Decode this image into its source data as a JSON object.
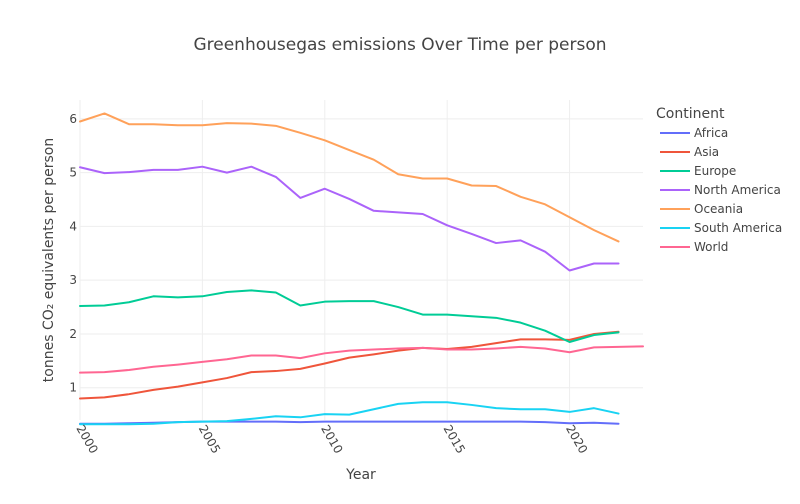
{
  "chart_data": {
    "type": "line",
    "title": "Greenhousegas emissions Over Time per person",
    "xlabel": "Year",
    "ylabel": "tonnes CO₂ equivalents per person",
    "xlim": [
      2000,
      2023
    ],
    "ylim": [
      0.4,
      6.35
    ],
    "x_ticks": [
      2000,
      2005,
      2010,
      2015,
      2020
    ],
    "y_ticks": [
      1,
      2,
      3,
      4,
      5,
      6
    ],
    "grid": true,
    "legend_title": "Continent",
    "legend_position": "right",
    "series": [
      {
        "name": "Africa",
        "color": "#636efa",
        "points": [
          [
            2000,
            0.33
          ],
          [
            2001,
            0.33
          ],
          [
            2002,
            0.34
          ],
          [
            2003,
            0.35
          ],
          [
            2004,
            0.36
          ],
          [
            2005,
            0.37
          ],
          [
            2006,
            0.37
          ],
          [
            2007,
            0.37
          ],
          [
            2008,
            0.37
          ],
          [
            2009,
            0.36
          ],
          [
            2010,
            0.37
          ],
          [
            2011,
            0.37
          ],
          [
            2012,
            0.37
          ],
          [
            2013,
            0.37
          ],
          [
            2014,
            0.37
          ],
          [
            2015,
            0.37
          ],
          [
            2016,
            0.37
          ],
          [
            2017,
            0.37
          ],
          [
            2018,
            0.37
          ],
          [
            2019,
            0.36
          ],
          [
            2020,
            0.34
          ],
          [
            2021,
            0.35
          ],
          [
            2022,
            0.33
          ]
        ]
      },
      {
        "name": "Asia",
        "color": "#ef553b",
        "points": [
          [
            2000,
            0.8
          ],
          [
            2001,
            0.82
          ],
          [
            2002,
            0.88
          ],
          [
            2003,
            0.96
          ],
          [
            2004,
            1.02
          ],
          [
            2005,
            1.1
          ],
          [
            2006,
            1.18
          ],
          [
            2007,
            1.29
          ],
          [
            2008,
            1.31
          ],
          [
            2009,
            1.35
          ],
          [
            2010,
            1.45
          ],
          [
            2011,
            1.56
          ],
          [
            2012,
            1.62
          ],
          [
            2013,
            1.69
          ],
          [
            2014,
            1.74
          ],
          [
            2015,
            1.72
          ],
          [
            2016,
            1.76
          ],
          [
            2017,
            1.83
          ],
          [
            2018,
            1.9
          ],
          [
            2019,
            1.9
          ],
          [
            2020,
            1.89
          ],
          [
            2021,
            2.0
          ],
          [
            2022,
            2.04
          ]
        ]
      },
      {
        "name": "Europe",
        "color": "#00cc96",
        "points": [
          [
            2000,
            2.52
          ],
          [
            2001,
            2.53
          ],
          [
            2002,
            2.59
          ],
          [
            2003,
            2.7
          ],
          [
            2004,
            2.68
          ],
          [
            2005,
            2.7
          ],
          [
            2006,
            2.78
          ],
          [
            2007,
            2.81
          ],
          [
            2008,
            2.77
          ],
          [
            2009,
            2.53
          ],
          [
            2010,
            2.6
          ],
          [
            2011,
            2.61
          ],
          [
            2012,
            2.61
          ],
          [
            2013,
            2.5
          ],
          [
            2014,
            2.36
          ],
          [
            2015,
            2.36
          ],
          [
            2016,
            2.33
          ],
          [
            2017,
            2.3
          ],
          [
            2018,
            2.21
          ],
          [
            2019,
            2.06
          ],
          [
            2020,
            1.85
          ],
          [
            2021,
            1.98
          ],
          [
            2022,
            2.03
          ]
        ]
      },
      {
        "name": "North America",
        "color": "#ab63fa",
        "points": [
          [
            2000,
            5.1
          ],
          [
            2001,
            4.99
          ],
          [
            2002,
            5.01
          ],
          [
            2003,
            5.05
          ],
          [
            2004,
            5.05
          ],
          [
            2005,
            5.11
          ],
          [
            2006,
            5.0
          ],
          [
            2007,
            5.11
          ],
          [
            2008,
            4.92
          ],
          [
            2009,
            4.53
          ],
          [
            2010,
            4.7
          ],
          [
            2011,
            4.51
          ],
          [
            2012,
            4.29
          ],
          [
            2013,
            4.26
          ],
          [
            2014,
            4.23
          ],
          [
            2015,
            4.02
          ],
          [
            2016,
            3.86
          ],
          [
            2017,
            3.69
          ],
          [
            2018,
            3.74
          ],
          [
            2019,
            3.53
          ],
          [
            2020,
            3.18
          ],
          [
            2021,
            3.31
          ],
          [
            2022,
            3.31
          ]
        ]
      },
      {
        "name": "Oceania",
        "color": "#ffa15a",
        "points": [
          [
            2000,
            5.95
          ],
          [
            2001,
            6.1
          ],
          [
            2002,
            5.9
          ],
          [
            2003,
            5.9
          ],
          [
            2004,
            5.88
          ],
          [
            2005,
            5.88
          ],
          [
            2006,
            5.92
          ],
          [
            2007,
            5.91
          ],
          [
            2008,
            5.87
          ],
          [
            2009,
            5.74
          ],
          [
            2010,
            5.6
          ],
          [
            2011,
            5.42
          ],
          [
            2012,
            5.24
          ],
          [
            2013,
            4.97
          ],
          [
            2014,
            4.89
          ],
          [
            2015,
            4.89
          ],
          [
            2016,
            4.76
          ],
          [
            2017,
            4.75
          ],
          [
            2018,
            4.55
          ],
          [
            2019,
            4.41
          ],
          [
            2020,
            4.17
          ],
          [
            2021,
            3.93
          ],
          [
            2022,
            3.72
          ]
        ]
      },
      {
        "name": "South America",
        "color": "#19d3f3",
        "points": [
          [
            2000,
            0.32
          ],
          [
            2001,
            0.32
          ],
          [
            2002,
            0.32
          ],
          [
            2003,
            0.33
          ],
          [
            2004,
            0.36
          ],
          [
            2005,
            0.37
          ],
          [
            2006,
            0.38
          ],
          [
            2007,
            0.42
          ],
          [
            2008,
            0.47
          ],
          [
            2009,
            0.45
          ],
          [
            2010,
            0.51
          ],
          [
            2011,
            0.5
          ],
          [
            2012,
            0.6
          ],
          [
            2013,
            0.7
          ],
          [
            2014,
            0.73
          ],
          [
            2015,
            0.73
          ],
          [
            2016,
            0.68
          ],
          [
            2017,
            0.62
          ],
          [
            2018,
            0.6
          ],
          [
            2019,
            0.6
          ],
          [
            2020,
            0.55
          ],
          [
            2021,
            0.62
          ],
          [
            2022,
            0.52
          ]
        ]
      },
      {
        "name": "World",
        "color": "#ff6692",
        "points": [
          [
            2000,
            1.28
          ],
          [
            2001,
            1.29
          ],
          [
            2002,
            1.33
          ],
          [
            2003,
            1.39
          ],
          [
            2004,
            1.43
          ],
          [
            2005,
            1.48
          ],
          [
            2006,
            1.53
          ],
          [
            2007,
            1.6
          ],
          [
            2008,
            1.6
          ],
          [
            2009,
            1.55
          ],
          [
            2010,
            1.64
          ],
          [
            2011,
            1.69
          ],
          [
            2012,
            1.71
          ],
          [
            2013,
            1.73
          ],
          [
            2014,
            1.74
          ],
          [
            2015,
            1.71
          ],
          [
            2016,
            1.71
          ],
          [
            2017,
            1.73
          ],
          [
            2018,
            1.76
          ],
          [
            2019,
            1.73
          ],
          [
            2020,
            1.66
          ],
          [
            2021,
            1.75
          ],
          [
            2022,
            1.76
          ],
          [
            2023,
            1.77
          ]
        ]
      }
    ]
  }
}
